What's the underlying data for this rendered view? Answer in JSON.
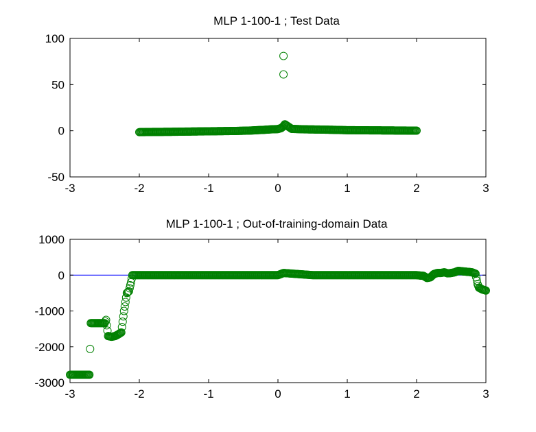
{
  "window": {
    "background": "#ffffff"
  },
  "colors": {
    "marker": "#008000",
    "line": "#0000ff",
    "axis": "#000000"
  },
  "chart_data": [
    {
      "type": "scatter",
      "title": "MLP 1-100-1 ; Test Data",
      "xlabel": "",
      "ylabel": "",
      "xlim": [
        -3,
        3
      ],
      "ylim": [
        -50,
        100
      ],
      "x_ticks": [
        -3,
        -2,
        -1,
        0,
        1,
        2,
        3
      ],
      "x_tick_labels": [
        "-3",
        "-2",
        "-1",
        "0",
        "1",
        "2",
        "3"
      ],
      "y_ticks": [
        -50,
        0,
        50,
        100
      ],
      "y_tick_labels": [
        "-50",
        "0",
        "50",
        "100"
      ],
      "grid": false,
      "marker": "open-circle",
      "series": [
        {
          "x": [
            -2.0,
            -1.8,
            -1.6,
            -1.4,
            -1.2,
            -1.0,
            -0.8,
            -0.6,
            -0.4,
            -0.3,
            -0.2,
            -0.1,
            0.0,
            0.05,
            0.08,
            0.1,
            0.2,
            0.4,
            0.6,
            0.8,
            1.0,
            1.2,
            1.4,
            1.6,
            1.8,
            2.0
          ],
          "y": [
            -1.5,
            -1.3,
            -1.2,
            -1.0,
            -0.8,
            -0.6,
            -0.4,
            -0.2,
            0.2,
            0.6,
            1.0,
            1.5,
            1.8,
            3.0,
            5.0,
            7.0,
            2.0,
            1.5,
            1.3,
            1.0,
            0.6,
            0.5,
            0.4,
            0.3,
            0.2,
            0.1
          ],
          "outliers": [
            {
              "x": 0.08,
              "y": 81
            },
            {
              "x": 0.08,
              "y": 61
            }
          ]
        }
      ]
    },
    {
      "type": "scatter",
      "title": "MLP 1-100-1 ; Out-of-training-domain Data",
      "xlabel": "",
      "ylabel": "",
      "xlim": [
        -3,
        3
      ],
      "ylim": [
        -3000,
        1000
      ],
      "x_ticks": [
        -3,
        -2,
        -1,
        0,
        1,
        2,
        3
      ],
      "x_tick_labels": [
        "-3",
        "-2",
        "-1",
        "0",
        "1",
        "2",
        "3"
      ],
      "y_ticks": [
        -3000,
        -2000,
        -1000,
        0,
        1000
      ],
      "y_tick_labels": [
        "-3000",
        "-2000",
        "-1000",
        "0",
        "1000"
      ],
      "grid": false,
      "marker": "open-circle",
      "reference_line": {
        "x": [
          -3,
          3
        ],
        "y": [
          0,
          0
        ]
      },
      "series": [
        {
          "x": [
            -3.0,
            -2.9,
            -2.8,
            -2.72,
            -2.7,
            -2.6,
            -2.5,
            -2.48,
            -2.45,
            -2.4,
            -2.35,
            -2.3,
            -2.28,
            -2.26,
            -2.24,
            -2.22,
            -2.2,
            -2.18,
            -2.15,
            -2.12,
            -2.1,
            -1.5,
            -1.0,
            -0.5,
            0.0,
            0.08,
            0.5,
            1.0,
            1.5,
            2.0,
            2.1,
            2.15,
            2.2,
            2.25,
            2.3,
            2.35,
            2.4,
            2.45,
            2.5,
            2.55,
            2.6,
            2.65,
            2.7,
            2.75,
            2.8,
            2.85,
            2.88,
            2.9,
            2.95,
            3.0
          ],
          "y": [
            -2780,
            -2780,
            -2780,
            -2780,
            -1340,
            -1340,
            -1340,
            -1250,
            -1700,
            -1720,
            -1700,
            -1650,
            -1620,
            -1600,
            -1300,
            -1000,
            -750,
            -500,
            -450,
            -200,
            0,
            0,
            0,
            0,
            0,
            60,
            0,
            0,
            0,
            0,
            -20,
            -80,
            -60,
            30,
            60,
            60,
            80,
            50,
            60,
            80,
            120,
            110,
            100,
            90,
            80,
            40,
            -250,
            -350,
            -400,
            -430
          ]
        }
      ]
    }
  ]
}
